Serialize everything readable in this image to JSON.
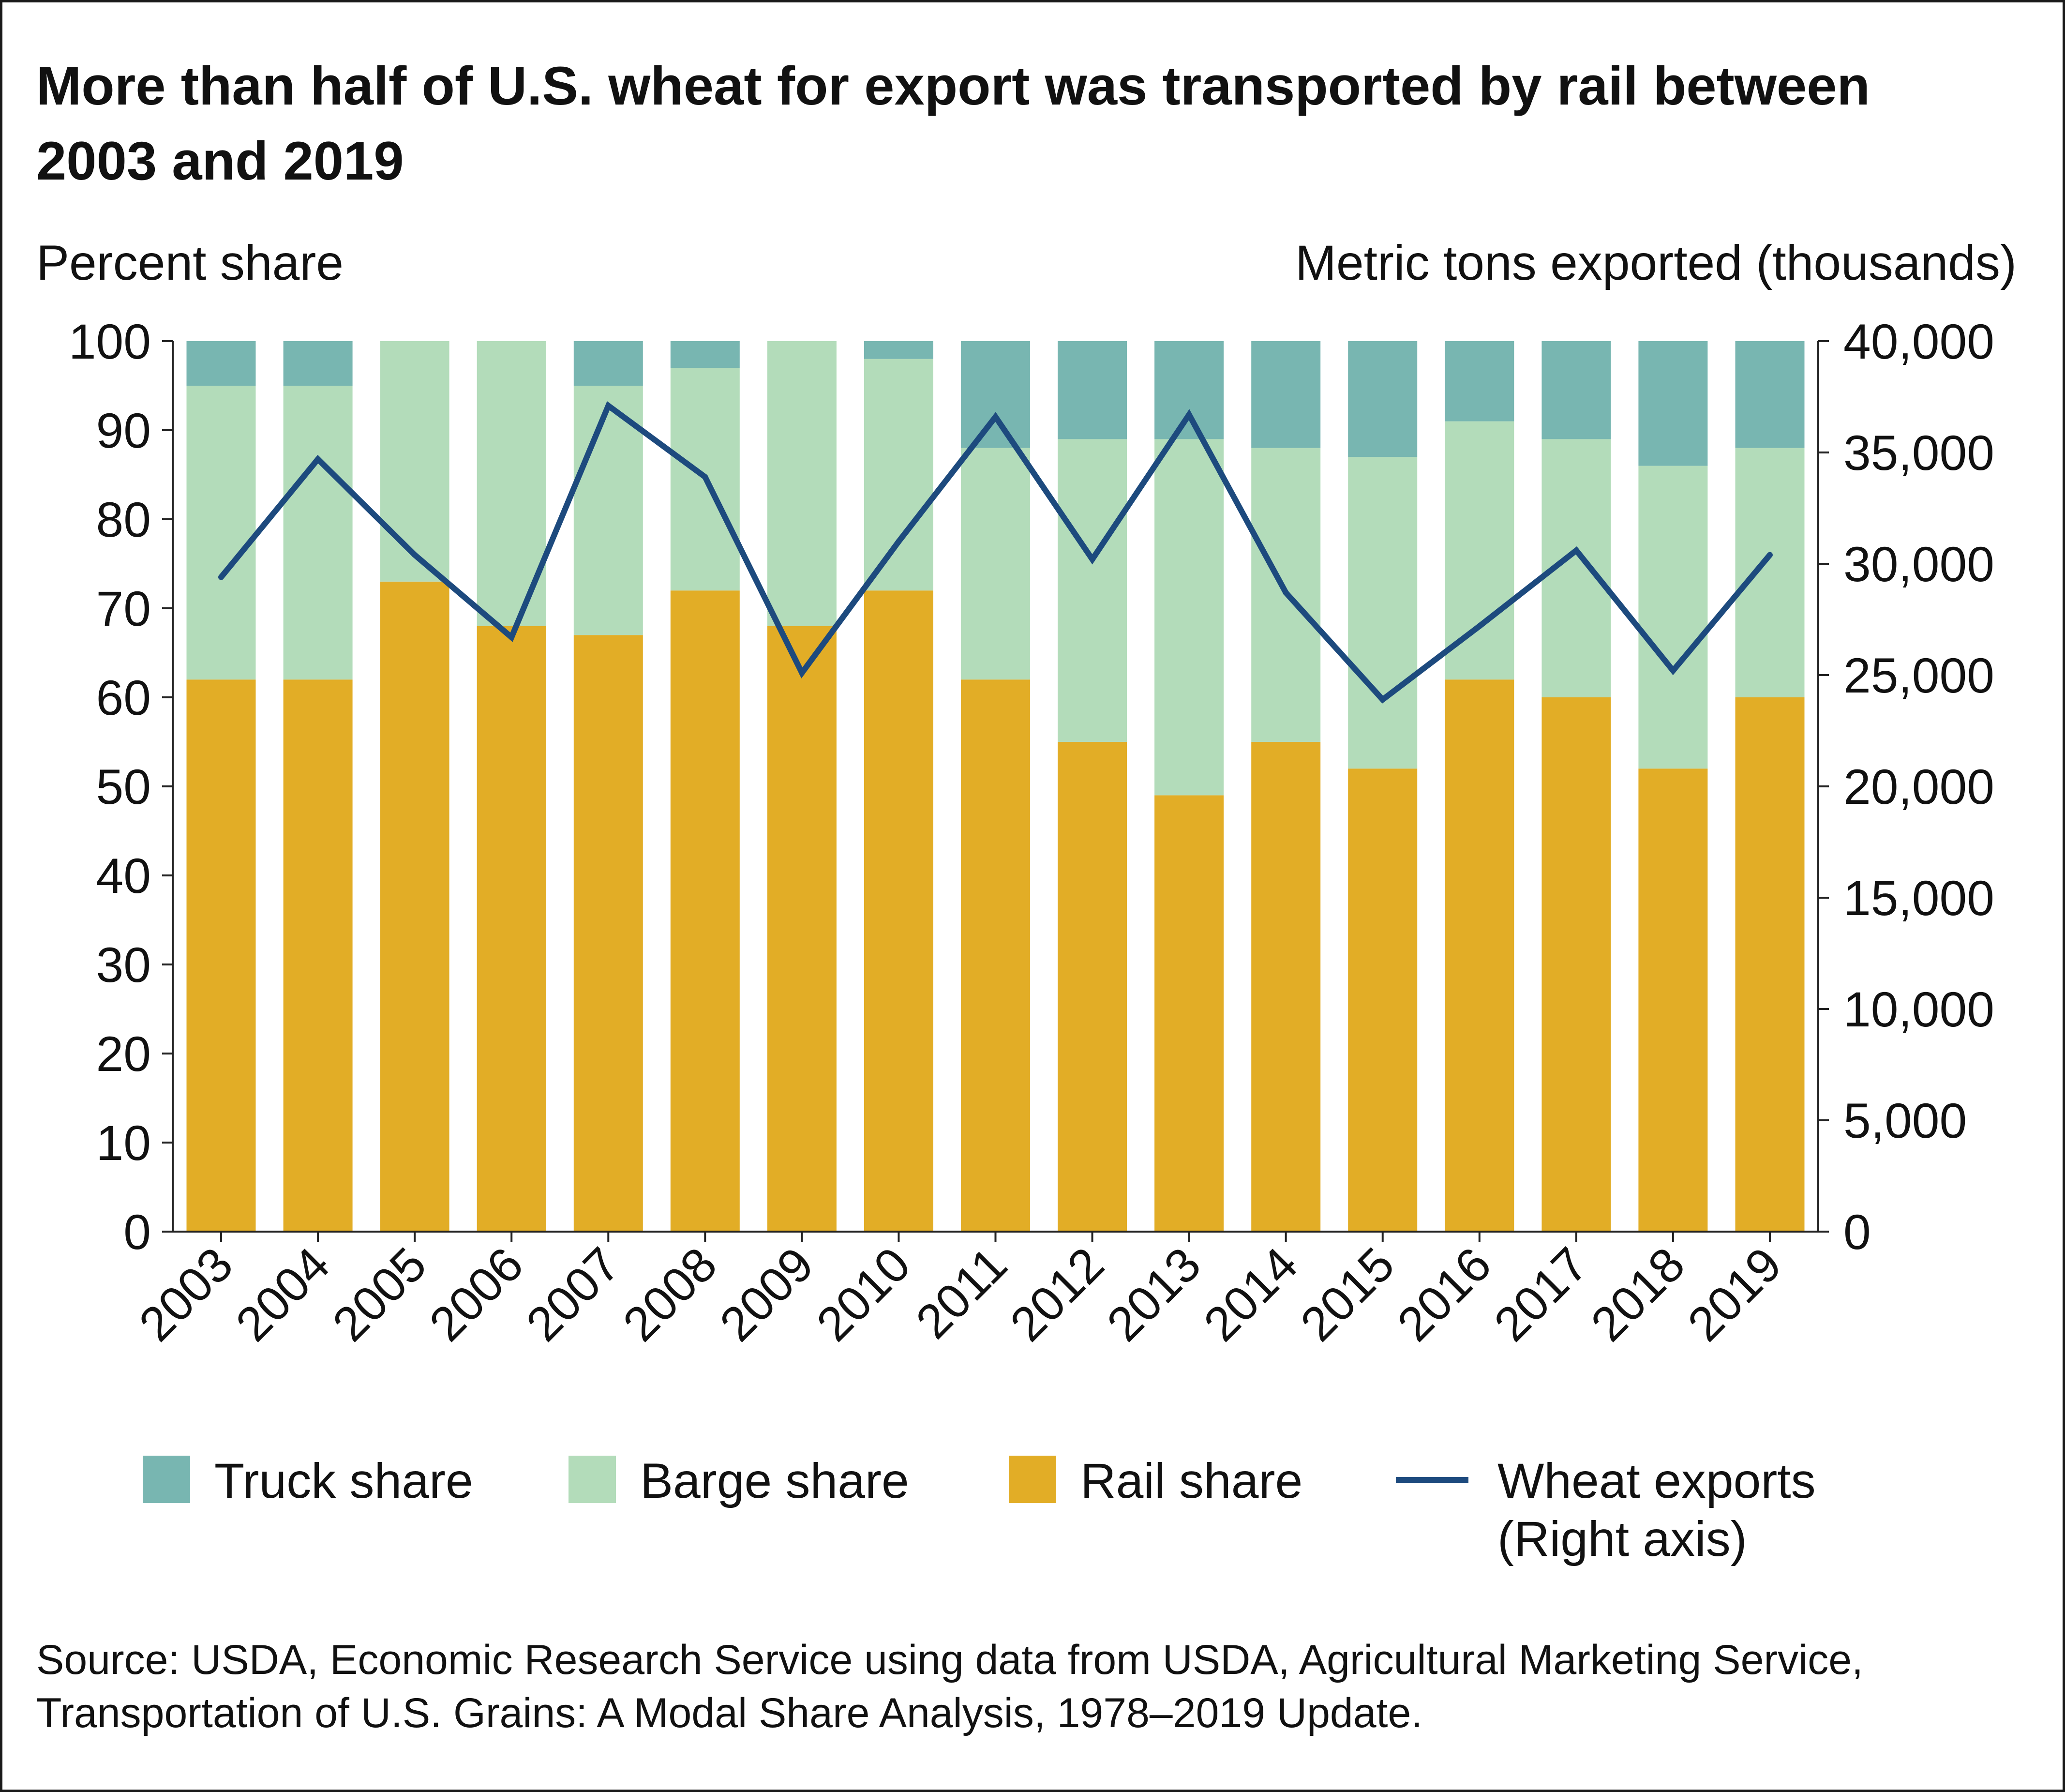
{
  "chart_data": {
    "type": "bar",
    "stacked": true,
    "dual_axis": true,
    "title": "More than half of U.S. wheat for export was transported by rail between 2003 and 2019",
    "ylabel": "Percent share",
    "ylabel_right": "Metric tons exported (thousands)",
    "xlabel": "",
    "ylim": [
      0,
      100
    ],
    "ylim_right": [
      0,
      40000
    ],
    "yticks": [
      "0",
      "10",
      "20",
      "30",
      "40",
      "50",
      "60",
      "70",
      "80",
      "90",
      "100"
    ],
    "yticks_right": [
      "0",
      "5,000",
      "10,000",
      "15,000",
      "20,000",
      "25,000",
      "30,000",
      "35,000",
      "40,000"
    ],
    "categories": [
      "2003",
      "2004",
      "2005",
      "2006",
      "2007",
      "2008",
      "2009",
      "2010",
      "2011",
      "2012",
      "2013",
      "2014",
      "2015",
      "2016",
      "2017",
      "2018",
      "2019"
    ],
    "series": [
      {
        "name": "Rail share",
        "type": "bar",
        "axis": "left",
        "color": "#E2AD26",
        "values": [
          62,
          62,
          73,
          68,
          67,
          72,
          68,
          72,
          62,
          55,
          49,
          55,
          52,
          62,
          60,
          52,
          60
        ]
      },
      {
        "name": "Barge share",
        "type": "bar",
        "axis": "left",
        "color": "#B3DCBA",
        "values": [
          33,
          33,
          27,
          32,
          28,
          25,
          32,
          26,
          26,
          34,
          40,
          33,
          35,
          29,
          29,
          34,
          28
        ]
      },
      {
        "name": "Truck share",
        "type": "bar",
        "axis": "left",
        "color": "#78B6B1",
        "values": [
          5,
          5,
          0,
          0,
          5,
          3,
          0,
          2,
          12,
          11,
          11,
          12,
          13,
          9,
          11,
          14,
          12
        ]
      },
      {
        "name": "Wheat exports\n(Right axis)",
        "type": "line",
        "axis": "right",
        "color": "#1D4A7E",
        "values": [
          29400,
          34700,
          30400,
          26700,
          37100,
          33900,
          25100,
          31000,
          36600,
          30200,
          36700,
          28700,
          23900,
          27200,
          30600,
          25200,
          30400
        ]
      }
    ],
    "legend": {
      "placement": "bottom",
      "order": [
        "Truck share",
        "Barge share",
        "Rail share",
        "Wheat exports\n(Right axis)"
      ]
    },
    "grid": false
  },
  "source": "Source: USDA, Economic Research Service using data from USDA, Agricultural Marketing Service, Transportation of U.S. Grains: A Modal Share Analysis, 1978–2019 Update."
}
